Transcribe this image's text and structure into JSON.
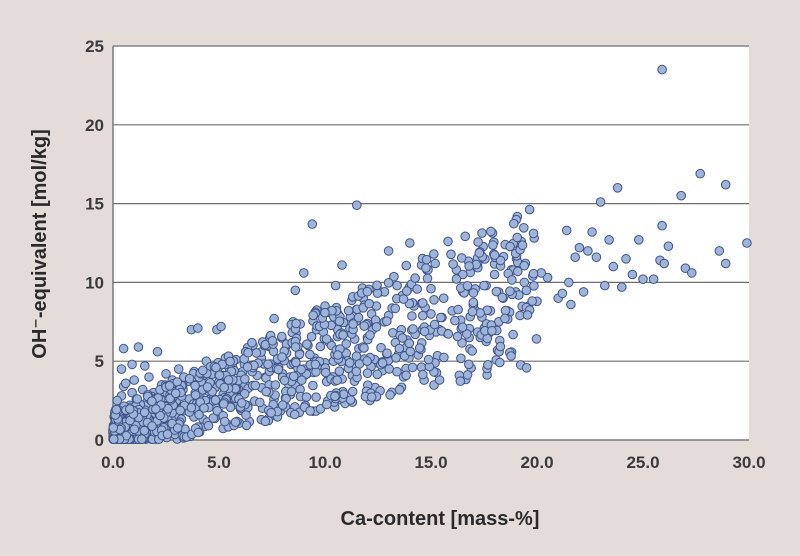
{
  "chart_data": {
    "type": "scatter",
    "title": "",
    "xlabel": "Ca-content [mass-%]",
    "ylabel": "OH⁻-equivalent [mol/kg]",
    "xlim": [
      0,
      30
    ],
    "ylim": [
      0,
      25
    ],
    "x_ticks": [
      "0.0",
      "5.0",
      "10.0",
      "15.0",
      "20.0",
      "25.0",
      "30.0"
    ],
    "y_ticks": [
      "0",
      "5",
      "10",
      "15",
      "20",
      "25"
    ],
    "grid": "horizontal",
    "legend": "none",
    "colors": {
      "background": "#e4dcd8",
      "plot_area": "#ffffff",
      "marker_fill": "#9fb4da",
      "marker_edge": "#3f5587",
      "gridline": "#6e6e6e"
    },
    "series": [
      {
        "points": [
          [
            0.1,
            0.5
          ],
          [
            0.2,
            1.2
          ],
          [
            0.3,
            2.0
          ],
          [
            0.4,
            2.8
          ],
          [
            0.5,
            3.4
          ],
          [
            0.1,
            1.8
          ],
          [
            0.3,
            0.3
          ],
          [
            0.2,
            2.5
          ],
          [
            0.6,
            1.5
          ],
          [
            0.7,
            0.8
          ],
          [
            0.5,
            5.8
          ],
          [
            0.8,
            2.2
          ],
          [
            0.9,
            3.0
          ],
          [
            1.0,
            1.0
          ],
          [
            1.1,
            2.6
          ],
          [
            1.2,
            5.9
          ],
          [
            1.3,
            1.8
          ],
          [
            1.4,
            3.2
          ],
          [
            1.5,
            0.9
          ],
          [
            1.6,
            2.4
          ],
          [
            1.7,
            4.0
          ],
          [
            1.8,
            1.5
          ],
          [
            1.9,
            3.0
          ],
          [
            2.0,
            2.0
          ],
          [
            2.1,
            5.6
          ],
          [
            2.2,
            1.3
          ],
          [
            2.3,
            3.5
          ],
          [
            2.4,
            2.1
          ],
          [
            2.5,
            4.2
          ],
          [
            2.6,
            1.8
          ],
          [
            2.7,
            2.9
          ],
          [
            2.8,
            3.8
          ],
          [
            2.9,
            1.5
          ],
          [
            3.0,
            2.5
          ],
          [
            3.1,
            4.5
          ],
          [
            3.2,
            2.0
          ],
          [
            3.3,
            3.2
          ],
          [
            3.4,
            1.9
          ],
          [
            3.5,
            3.7
          ],
          [
            3.6,
            2.6
          ],
          [
            3.7,
            7.0
          ],
          [
            3.8,
            2.3
          ],
          [
            3.9,
            3.5
          ],
          [
            4.0,
            7.1
          ],
          [
            4.1,
            2.8
          ],
          [
            4.2,
            4.0
          ],
          [
            4.3,
            2.4
          ],
          [
            4.4,
            5.0
          ],
          [
            4.5,
            3.1
          ],
          [
            4.6,
            2.6
          ],
          [
            4.7,
            4.6
          ],
          [
            4.8,
            3.3
          ],
          [
            4.9,
            7.0
          ],
          [
            5.0,
            3.7
          ],
          [
            5.1,
            7.2
          ],
          [
            5.2,
            2.9
          ],
          [
            5.3,
            5.2
          ],
          [
            5.4,
            3.9
          ],
          [
            5.5,
            4.5
          ],
          [
            5.6,
            3.2
          ],
          [
            5.8,
            5.1
          ],
          [
            6.0,
            3.6
          ],
          [
            6.2,
            4.8
          ],
          [
            6.4,
            3.4
          ],
          [
            6.6,
            6.0
          ],
          [
            6.8,
            4.1
          ],
          [
            7.0,
            5.2
          ],
          [
            7.2,
            4.0
          ],
          [
            7.4,
            6.5
          ],
          [
            7.5,
            4.6
          ],
          [
            7.6,
            7.7
          ],
          [
            7.8,
            5.0
          ],
          [
            8.0,
            4.2
          ],
          [
            8.2,
            6.0
          ],
          [
            8.4,
            4.8
          ],
          [
            8.5,
            7.5
          ],
          [
            8.6,
            9.5
          ],
          [
            8.8,
            5.5
          ],
          [
            9.0,
            4.5
          ],
          [
            9.0,
            10.6
          ],
          [
            9.2,
            6.0
          ],
          [
            9.4,
            13.7
          ],
          [
            9.5,
            5.2
          ],
          [
            9.6,
            7.0
          ],
          [
            9.8,
            4.8
          ],
          [
            10.0,
            8.5
          ],
          [
            10.2,
            6.2
          ],
          [
            10.4,
            5.0
          ],
          [
            10.5,
            9.8
          ],
          [
            10.6,
            7.0
          ],
          [
            10.8,
            11.1
          ],
          [
            11.0,
            5.5
          ],
          [
            11.2,
            7.8
          ],
          [
            11.4,
            6.4
          ],
          [
            11.5,
            14.9
          ],
          [
            11.6,
            5.8
          ],
          [
            11.8,
            9.0
          ],
          [
            12.0,
            6.5
          ],
          [
            12.2,
            8.0
          ],
          [
            12.4,
            7.2
          ],
          [
            12.5,
            4.9
          ],
          [
            12.6,
            9.4
          ],
          [
            12.8,
            7.5
          ],
          [
            13.0,
            12.0
          ],
          [
            13.2,
            6.8
          ],
          [
            13.4,
            9.8
          ],
          [
            13.6,
            7.0
          ],
          [
            13.8,
            5.4
          ],
          [
            14.0,
            12.5
          ],
          [
            14.2,
            8.5
          ],
          [
            14.4,
            5.4
          ],
          [
            14.6,
            7.0
          ],
          [
            14.8,
            10.8
          ],
          [
            15.0,
            8.0
          ],
          [
            15.2,
            11.2
          ],
          [
            15.4,
            7.0
          ],
          [
            15.6,
            9.0
          ],
          [
            15.8,
            12.6
          ],
          [
            16.0,
            8.2
          ],
          [
            16.2,
            10.8
          ],
          [
            16.4,
            7.6
          ],
          [
            16.6,
            9.6
          ],
          [
            16.8,
            6.5
          ],
          [
            17.0,
            8.6
          ],
          [
            17.2,
            11.2
          ],
          [
            17.4,
            7.8
          ],
          [
            17.6,
            9.8
          ],
          [
            17.8,
            8.2
          ],
          [
            18.0,
            10.5
          ],
          [
            18.2,
            7.5
          ],
          [
            18.4,
            9.0
          ],
          [
            18.5,
            12.4
          ],
          [
            18.6,
            8.2
          ],
          [
            18.8,
            10.8
          ],
          [
            19.0,
            9.4
          ],
          [
            19.2,
            7.9
          ],
          [
            19.4,
            10.0
          ],
          [
            19.6,
            8.5
          ],
          [
            19.8,
            10.4
          ],
          [
            20.0,
            8.8
          ],
          [
            20.5,
            10.3
          ],
          [
            21.0,
            9.0
          ],
          [
            21.2,
            9.3
          ],
          [
            21.4,
            13.3
          ],
          [
            21.6,
            8.6
          ],
          [
            21.8,
            11.6
          ],
          [
            22.0,
            12.2
          ],
          [
            22.2,
            9.4
          ],
          [
            22.4,
            12.0
          ],
          [
            22.6,
            13.2
          ],
          [
            22.8,
            11.6
          ],
          [
            23.0,
            15.1
          ],
          [
            23.2,
            9.8
          ],
          [
            23.4,
            12.7
          ],
          [
            23.6,
            11.0
          ],
          [
            23.8,
            16.0
          ],
          [
            24.0,
            9.7
          ],
          [
            24.2,
            11.5
          ],
          [
            24.5,
            10.5
          ],
          [
            24.8,
            12.7
          ],
          [
            25.0,
            10.2
          ],
          [
            25.5,
            10.2
          ],
          [
            25.8,
            11.4
          ],
          [
            25.9,
            13.6
          ],
          [
            25.9,
            23.5
          ],
          [
            26.0,
            11.2
          ],
          [
            26.2,
            12.3
          ],
          [
            26.8,
            15.5
          ],
          [
            27.0,
            10.9
          ],
          [
            27.3,
            10.6
          ],
          [
            27.7,
            16.9
          ],
          [
            28.6,
            12.0
          ],
          [
            28.9,
            11.2
          ],
          [
            28.9,
            16.2
          ],
          [
            29.9,
            12.5
          ],
          [
            10.0,
            4.9
          ],
          [
            11.0,
            6.1
          ],
          [
            12.0,
            7.4
          ],
          [
            13.0,
            7.9
          ],
          [
            15.0,
            9.6
          ],
          [
            16.5,
            9.4
          ],
          [
            17.5,
            9.8
          ],
          [
            19.5,
            9.5
          ],
          [
            20.2,
            10.6
          ],
          [
            21.5,
            10.0
          ],
          [
            0.4,
            4.5
          ],
          [
            0.6,
            3.6
          ],
          [
            0.9,
            4.8
          ],
          [
            1.5,
            4.7
          ],
          [
            1.0,
            3.8
          ]
        ]
      }
    ]
  }
}
